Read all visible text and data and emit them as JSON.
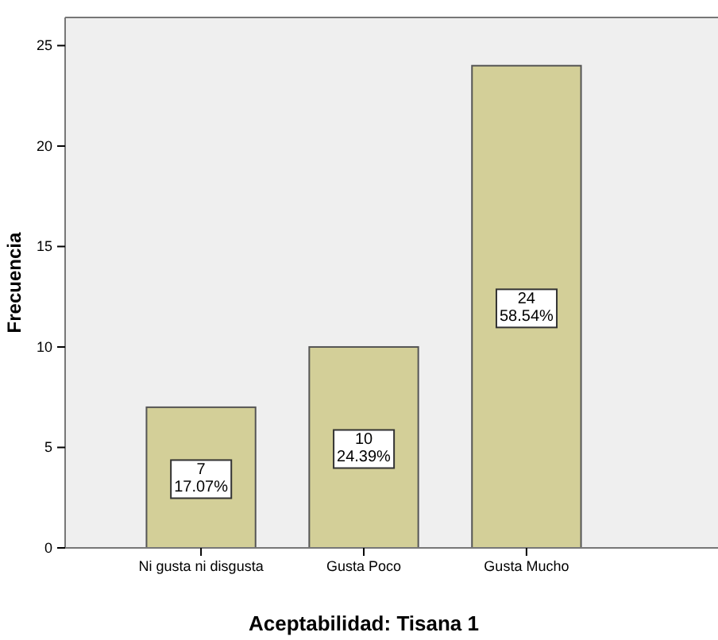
{
  "chart_data": {
    "type": "bar",
    "xlabel": "Aceptabilidad: Tisana 1",
    "ylabel": "Frecuencia",
    "categories": [
      "Ni gusta ni disgusta",
      "Gusta Poco",
      "Gusta Mucho"
    ],
    "values": [
      7,
      10,
      24
    ],
    "value_labels": [
      "7\n17.07%",
      "10\n24.39%",
      "24\n58.54%"
    ],
    "color": "#d3cf98",
    "ylim": [
      0,
      26.4
    ],
    "yticks": [
      0,
      5,
      10,
      15,
      20,
      25
    ],
    "grid": false
  }
}
